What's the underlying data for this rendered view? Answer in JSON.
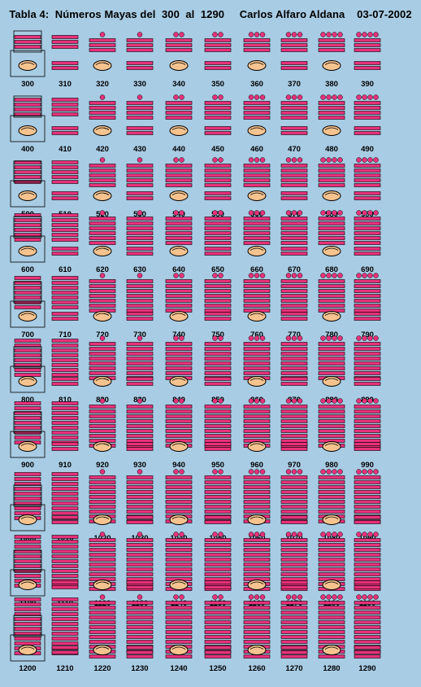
{
  "title": "Tabla 4:  Números Mayas del  300  al  1290     Carlos Alfaro Aldana    03-07-2002",
  "colors": {
    "background": "#a8cce4",
    "bar": "#e8317a",
    "dot": "#e8317a",
    "shell": "#f6c38f",
    "outline": "#000000"
  },
  "glyphs": [
    "maya-dot",
    "maya-bar",
    "maya-shell-zero"
  ],
  "rows": [
    [
      300,
      310,
      320,
      330,
      340,
      350,
      360,
      370,
      380,
      390
    ],
    [
      400,
      410,
      420,
      430,
      440,
      450,
      460,
      470,
      480,
      490
    ],
    [
      500,
      510,
      520,
      530,
      540,
      550,
      560,
      570,
      580,
      590
    ],
    [
      600,
      610,
      620,
      630,
      640,
      650,
      660,
      670,
      680,
      690
    ],
    [
      700,
      710,
      720,
      730,
      740,
      750,
      760,
      770,
      780,
      790
    ],
    [
      800,
      810,
      820,
      830,
      840,
      850,
      860,
      870,
      880,
      890
    ],
    [
      900,
      910,
      920,
      930,
      940,
      950,
      960,
      970,
      980,
      990
    ],
    [
      1000,
      1010,
      1020,
      1030,
      1040,
      1050,
      1060,
      1070,
      1080,
      1090
    ],
    [
      1100,
      1110,
      1120,
      1130,
      1140,
      1150,
      1160,
      1170,
      1180,
      1190
    ],
    [
      1200,
      1210,
      1220,
      1230,
      1240,
      1250,
      1260,
      1270,
      1280,
      1290
    ]
  ]
}
